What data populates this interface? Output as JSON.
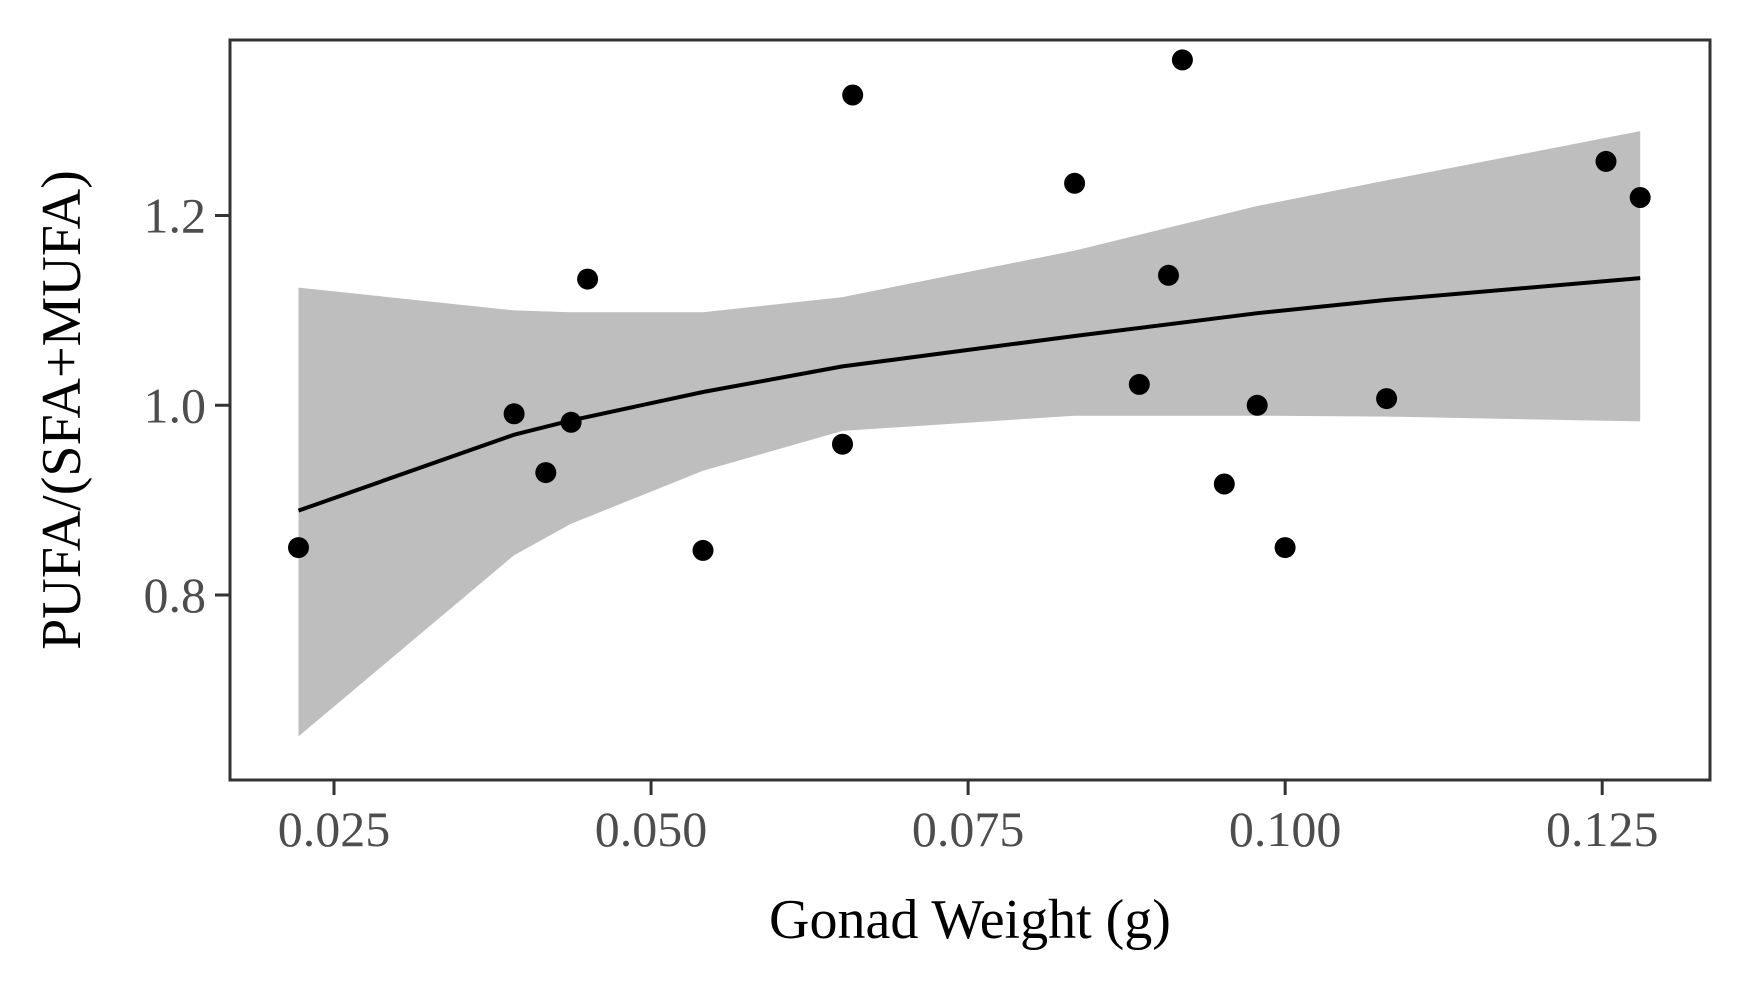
{
  "chart_data": {
    "type": "scatter",
    "title": "",
    "xlabel": "Gonad Weight (g)",
    "ylabel": "PUFA/(SFA+MUFA)",
    "xlim": [
      0.0168,
      0.1335
    ],
    "ylim": [
      0.605,
      1.385
    ],
    "x_ticks": [
      0.025,
      0.05,
      0.075,
      0.1,
      0.125
    ],
    "x_tick_labels": [
      "0.025",
      "0.050",
      "0.075",
      "0.100",
      "0.125"
    ],
    "y_ticks": [
      0.8,
      1.0,
      1.2
    ],
    "y_tick_labels": [
      "0.8",
      "1.0",
      "1.2"
    ],
    "grid": false,
    "legend": "none",
    "points": [
      {
        "x": 0.0222,
        "y": 0.85
      },
      {
        "x": 0.0392,
        "y": 0.991
      },
      {
        "x": 0.0417,
        "y": 0.929
      },
      {
        "x": 0.0437,
        "y": 0.982
      },
      {
        "x": 0.045,
        "y": 1.133
      },
      {
        "x": 0.0541,
        "y": 0.847
      },
      {
        "x": 0.0651,
        "y": 0.959
      },
      {
        "x": 0.0659,
        "y": 1.327
      },
      {
        "x": 0.0834,
        "y": 1.234
      },
      {
        "x": 0.0885,
        "y": 1.022
      },
      {
        "x": 0.0908,
        "y": 1.137
      },
      {
        "x": 0.0919,
        "y": 1.364
      },
      {
        "x": 0.0952,
        "y": 0.917
      },
      {
        "x": 0.0978,
        "y": 1.0
      },
      {
        "x": 0.1,
        "y": 0.85
      },
      {
        "x": 0.108,
        "y": 1.007
      },
      {
        "x": 0.1253,
        "y": 1.257
      },
      {
        "x": 0.128,
        "y": 1.219
      }
    ],
    "trend_line": {
      "x": [
        0.0222,
        0.0392,
        0.0437,
        0.0541,
        0.0651,
        0.0834,
        0.0978,
        0.108,
        0.128
      ],
      "y": [
        0.889,
        0.969,
        0.984,
        1.014,
        1.041,
        1.073,
        1.097,
        1.111,
        1.134
      ]
    },
    "confidence_band": {
      "x": [
        0.0222,
        0.0392,
        0.0437,
        0.0541,
        0.0651,
        0.0834,
        0.0978,
        0.108,
        0.128
      ],
      "lower": [
        0.651,
        0.842,
        0.875,
        0.931,
        0.973,
        0.989,
        0.989,
        0.988,
        0.983
      ],
      "upper": [
        1.124,
        1.1,
        1.098,
        1.098,
        1.114,
        1.163,
        1.21,
        1.237,
        1.289
      ]
    },
    "colors": {
      "points": "#000000",
      "trend_line": "#000000",
      "band": "#bebebe",
      "panel_border": "#333333",
      "tick_text": "#4d4d4d"
    }
  }
}
